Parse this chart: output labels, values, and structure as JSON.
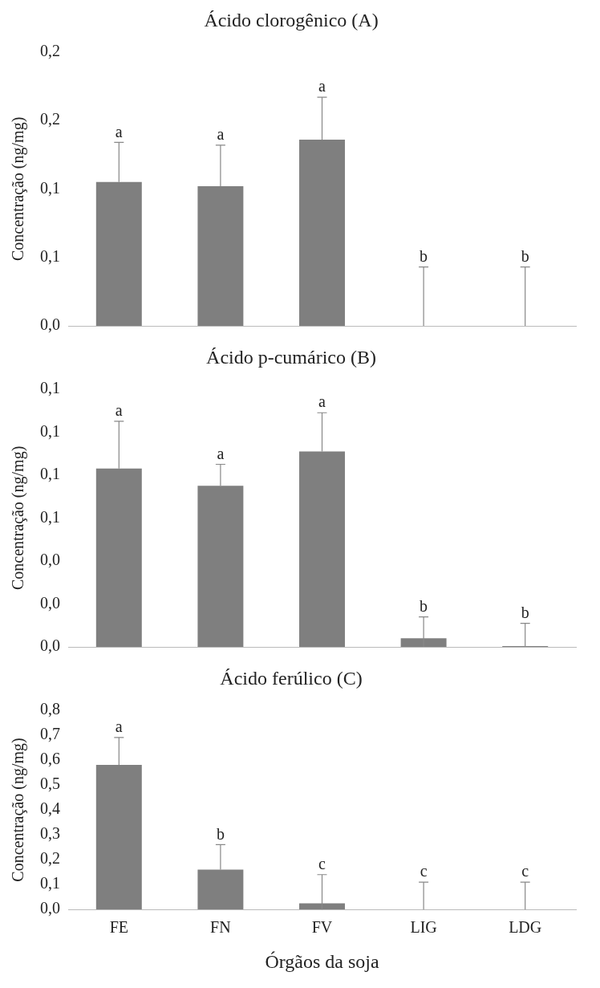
{
  "chart_data": [
    {
      "type": "bar",
      "title": "Ácido clorogênico (A)",
      "ylabel": "Concentração (ng/mg)",
      "categories": [
        "FE",
        "FN",
        "FV",
        "LIG",
        "LDG"
      ],
      "tick_labels": "y",
      "grid": false,
      "legend": false,
      "series": [
        {
          "color": "#7f7f7f",
          "values": [
            0.105,
            0.102,
            0.136,
            0,
            0
          ],
          "errors": [
            [
              0.105,
              0.134
            ],
            [
              0.102,
              0.132
            ],
            [
              0.136,
              0.167
            ],
            [
              0,
              0.043
            ],
            [
              0,
              0.043
            ]
          ]
        }
      ],
      "ylim": [
        0,
        0.2
      ],
      "yticks": [
        {
          "value": 0,
          "label": "0,0"
        },
        {
          "value": 0.05,
          "label": "0,1"
        },
        {
          "value": 0.1,
          "label": "0,1"
        },
        {
          "value": 0.15,
          "label": "0,2"
        },
        {
          "value": 0.2,
          "label": "0,2"
        }
      ],
      "annotations": [
        {
          "text": "a",
          "x": "FE",
          "y": 0.134
        },
        {
          "text": "a",
          "x": "FN",
          "y": 0.132
        },
        {
          "text": "a",
          "x": "FV",
          "y": 0.167
        },
        {
          "text": "b",
          "x": "LIG",
          "y": 0.043
        },
        {
          "text": "b",
          "x": "LDG",
          "y": 0.043
        }
      ]
    },
    {
      "type": "bar",
      "title": "Ácido p-cumárico (B)",
      "ylabel": "Concentração (ng/mg)",
      "categories": [
        "FE",
        "FN",
        "FV",
        "LIG",
        "LDG"
      ],
      "tick_labels": "y",
      "grid": false,
      "legend": false,
      "series": [
        {
          "color": "#7f7f7f",
          "values": [
            0.083,
            0.075,
            0.091,
            0.004,
            0.0004
          ],
          "errors": [
            [
              0.083,
              0.105
            ],
            [
              0.075,
              0.085
            ],
            [
              0.091,
              0.109
            ],
            [
              0,
              0.014
            ],
            [
              0,
              0.011
            ]
          ]
        }
      ],
      "ylim": [
        0,
        0.12
      ],
      "yticks": [
        {
          "value": 0,
          "label": "0,0"
        },
        {
          "value": 0.02,
          "label": "0,0"
        },
        {
          "value": 0.04,
          "label": "0,0"
        },
        {
          "value": 0.06,
          "label": "0,1"
        },
        {
          "value": 0.08,
          "label": "0,1"
        },
        {
          "value": 0.1,
          "label": "0,1"
        },
        {
          "value": 0.12,
          "label": "0,1"
        }
      ],
      "annotations": [
        {
          "text": "a",
          "x": "FE",
          "y": 0.105
        },
        {
          "text": "a",
          "x": "FN",
          "y": 0.085
        },
        {
          "text": "a",
          "x": "FV",
          "y": 0.109
        },
        {
          "text": "b",
          "x": "LIG",
          "y": 0.014
        },
        {
          "text": "b",
          "x": "LDG",
          "y": 0.011
        }
      ]
    },
    {
      "type": "bar",
      "title": "Ácido ferúlico (C)",
      "ylabel": "Concentração (ng/mg)",
      "xlabel": "Órgãos da soja",
      "categories": [
        "FE",
        "FN",
        "FV",
        "LIG",
        "LDG"
      ],
      "grid": false,
      "legend": false,
      "series": [
        {
          "color": "#7f7f7f",
          "values": [
            0.58,
            0.16,
            0.025,
            0,
            0
          ],
          "errors": [
            [
              0.58,
              0.69
            ],
            [
              0.16,
              0.26
            ],
            [
              0,
              0.14
            ],
            [
              0,
              0.11
            ],
            [
              0,
              0.11
            ]
          ]
        }
      ],
      "ylim": [
        0,
        0.8
      ],
      "yticks": [
        {
          "value": 0,
          "label": "0,0"
        },
        {
          "value": 0.1,
          "label": "0,1"
        },
        {
          "value": 0.2,
          "label": "0,2"
        },
        {
          "value": 0.3,
          "label": "0,3"
        },
        {
          "value": 0.4,
          "label": "0,4"
        },
        {
          "value": 0.5,
          "label": "0,5"
        },
        {
          "value": 0.6,
          "label": "0,6"
        },
        {
          "value": 0.7,
          "label": "0,7"
        },
        {
          "value": 0.8,
          "label": "0,8"
        }
      ],
      "annotations": [
        {
          "text": "a",
          "x": "FE",
          "y": 0.69
        },
        {
          "text": "b",
          "x": "FN",
          "y": 0.26
        },
        {
          "text": "c",
          "x": "FV",
          "y": 0.14
        },
        {
          "text": "c",
          "x": "LIG",
          "y": 0.11
        },
        {
          "text": "c",
          "x": "LDG",
          "y": 0.11
        }
      ]
    }
  ]
}
